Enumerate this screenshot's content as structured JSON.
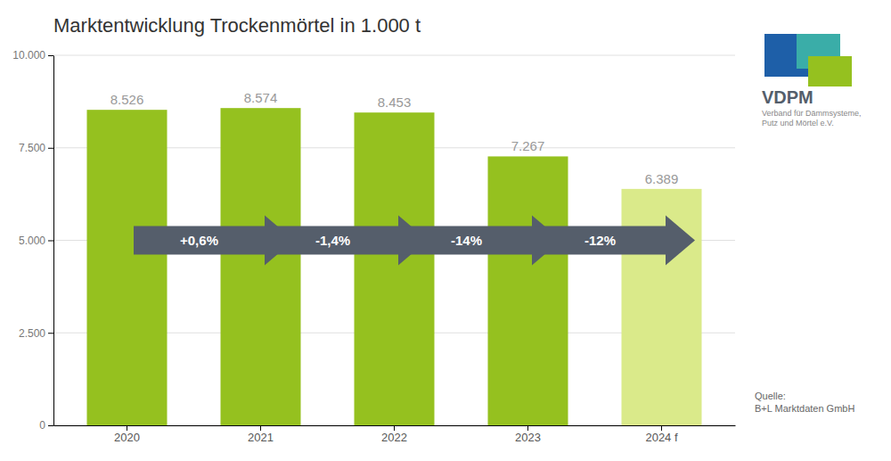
{
  "chart_data": {
    "type": "bar",
    "title": "Marktentwicklung Trockenmörtel in 1.000 t",
    "categories": [
      "2020",
      "2021",
      "2022",
      "2023",
      "2024 f"
    ],
    "values": [
      8526,
      8574,
      8453,
      7267,
      6389
    ],
    "value_labels": [
      "8.526",
      "8.574",
      "8.453",
      "7.267",
      "6.389"
    ],
    "data_labels": true,
    "colors": [
      "#95c11f",
      "#95c11f",
      "#95c11f",
      "#95c11f",
      "#daea8a"
    ],
    "ylim": [
      0,
      10000
    ],
    "yticks": [
      0,
      {
        "value": 2500,
        "label": "2.500"
      },
      {
        "value": 5000,
        "label": "5.000"
      },
      {
        "value": 7500,
        "label": "7.500"
      },
      {
        "value": 10000,
        "label": "10.000"
      }
    ],
    "grid": true,
    "annotations": [
      "+0,6%",
      "-1,4%",
      "-14%",
      "-12%"
    ],
    "source": "Quelle:\nB+L Marktdaten GmbH",
    "logo": [
      "VDPM",
      "Verband für Dämmsysteme,",
      "Putz und Mörtel e.V."
    ]
  }
}
